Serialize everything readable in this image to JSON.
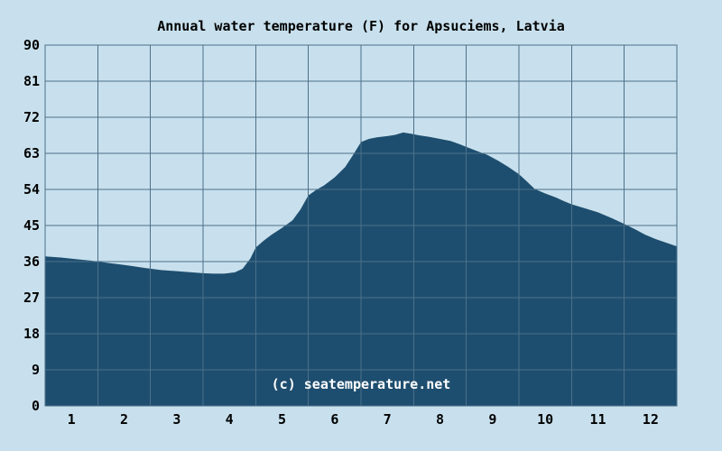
{
  "colors": {
    "background": "#c8e0ed",
    "area_fill": "#1e4e6f",
    "gridline": "#4c7089",
    "label_text": "#000000",
    "watermark_text": "#ffffff"
  },
  "chart_data": {
    "type": "area",
    "title": "Annual water temperature (F) for Apsuciems, Latvia",
    "xlabel": "",
    "ylabel": "",
    "watermark": "(c) seatemperature.net",
    "x_tick_labels": [
      "1",
      "2",
      "3",
      "4",
      "5",
      "6",
      "7",
      "8",
      "9",
      "10",
      "11",
      "12"
    ],
    "y_ticks": [
      0,
      9,
      18,
      27,
      36,
      45,
      54,
      63,
      72,
      81,
      90
    ],
    "xlim": [
      0,
      12
    ],
    "ylim": [
      0,
      90
    ],
    "grid": true,
    "legend": false,
    "series": [
      {
        "name": "water temperature (F)",
        "monthly_values": [
          37.0,
          35.2,
          33.6,
          33.0,
          44.4,
          57.0,
          67.3,
          66.6,
          62.0,
          53.1,
          48.3,
          42.1
        ],
        "points": [
          [
            0.0,
            37.3
          ],
          [
            0.3,
            37.0
          ],
          [
            0.6,
            36.6
          ],
          [
            0.9,
            36.2
          ],
          [
            1.0,
            36.0
          ],
          [
            1.3,
            35.5
          ],
          [
            1.6,
            35.0
          ],
          [
            1.9,
            34.4
          ],
          [
            2.2,
            33.9
          ],
          [
            2.5,
            33.6
          ],
          [
            2.8,
            33.3
          ],
          [
            3.0,
            33.1
          ],
          [
            3.2,
            33.0
          ],
          [
            3.4,
            33.0
          ],
          [
            3.6,
            33.3
          ],
          [
            3.75,
            34.2
          ],
          [
            3.9,
            36.8
          ],
          [
            4.0,
            39.5
          ],
          [
            4.15,
            41.2
          ],
          [
            4.3,
            42.7
          ],
          [
            4.5,
            44.4
          ],
          [
            4.7,
            46.3
          ],
          [
            4.85,
            49.0
          ],
          [
            5.0,
            52.5
          ],
          [
            5.15,
            53.9
          ],
          [
            5.3,
            55.0
          ],
          [
            5.5,
            57.0
          ],
          [
            5.7,
            59.6
          ],
          [
            5.85,
            62.6
          ],
          [
            6.0,
            65.8
          ],
          [
            6.15,
            66.6
          ],
          [
            6.3,
            67.0
          ],
          [
            6.5,
            67.3
          ],
          [
            6.65,
            67.6
          ],
          [
            6.8,
            68.2
          ],
          [
            6.95,
            67.9
          ],
          [
            7.1,
            67.5
          ],
          [
            7.3,
            67.1
          ],
          [
            7.5,
            66.6
          ],
          [
            7.7,
            66.1
          ],
          [
            7.85,
            65.4
          ],
          [
            8.0,
            64.6
          ],
          [
            8.2,
            63.6
          ],
          [
            8.4,
            62.6
          ],
          [
            8.6,
            61.2
          ],
          [
            8.8,
            59.6
          ],
          [
            9.0,
            57.8
          ],
          [
            9.15,
            56.0
          ],
          [
            9.3,
            54.1
          ],
          [
            9.5,
            53.0
          ],
          [
            9.7,
            52.0
          ],
          [
            9.85,
            51.1
          ],
          [
            10.0,
            50.3
          ],
          [
            10.25,
            49.3
          ],
          [
            10.5,
            48.3
          ],
          [
            10.75,
            46.9
          ],
          [
            11.0,
            45.4
          ],
          [
            11.2,
            44.1
          ],
          [
            11.4,
            42.7
          ],
          [
            11.6,
            41.6
          ],
          [
            11.8,
            40.7
          ],
          [
            12.0,
            39.8
          ]
        ]
      }
    ]
  }
}
